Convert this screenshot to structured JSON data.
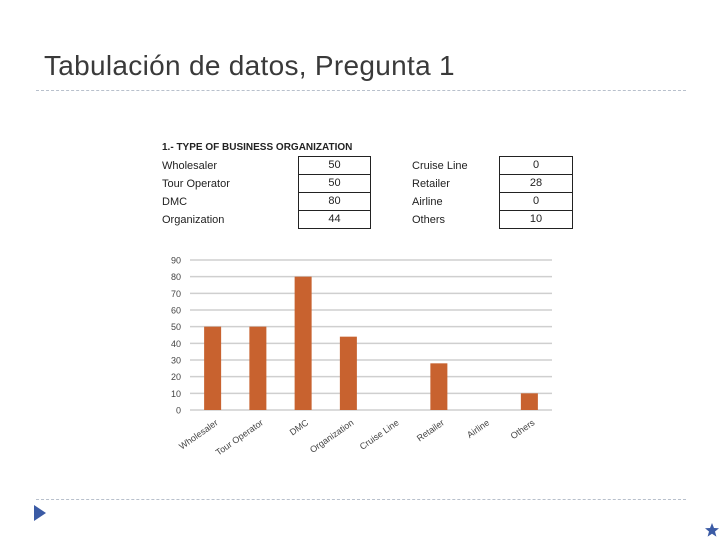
{
  "slide": {
    "title": "Tabulación de datos, Pregunta 1"
  },
  "table": {
    "title": "1.- TYPE OF BUSINESS ORGANIZATION",
    "left": [
      {
        "label": "Wholesaler",
        "value": "50"
      },
      {
        "label": "Tour Operator",
        "value": "50"
      },
      {
        "label": "DMC",
        "value": "80"
      },
      {
        "label": "Organization",
        "value": "44"
      }
    ],
    "right": [
      {
        "label": "Cruise Line",
        "value": "0"
      },
      {
        "label": "Retailer",
        "value": "28"
      },
      {
        "label": "Airline",
        "value": "0"
      },
      {
        "label": "Others",
        "value": "10"
      }
    ]
  },
  "chart_data": {
    "type": "bar",
    "categories": [
      "Wholesaler",
      "Tour Operator",
      "DMC",
      "Organization",
      "Cruise Line",
      "Retailer",
      "Airline",
      "Others"
    ],
    "values": [
      50,
      50,
      80,
      44,
      0,
      28,
      0,
      10
    ],
    "title": "",
    "xlabel": "",
    "ylabel": "",
    "ylim": [
      0,
      90
    ],
    "yticks": [
      0,
      10,
      20,
      30,
      40,
      50,
      60,
      70,
      80,
      90
    ],
    "grid": true,
    "bar_color": "#c8622f",
    "grid_color": "#cfcfcf"
  },
  "colors": {
    "accent": "#3b5ba5"
  },
  "icons": {
    "nav": "triangle-right-icon",
    "corner": "star-icon"
  }
}
